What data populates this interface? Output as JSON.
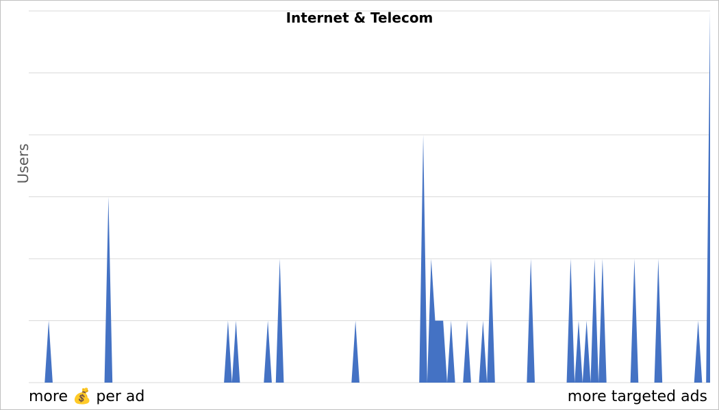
{
  "chart_data": {
    "type": "area",
    "title": "Internet & Telecom",
    "ylabel": "Users",
    "x_left_label": "more 💰 per ad",
    "x_right_label": "more targeted ads",
    "ylim": [
      0,
      6
    ],
    "grid": true,
    "series": [
      {
        "color": "#4472c4",
        "values": [
          0,
          0,
          0,
          0,
          0,
          1,
          0,
          0,
          0,
          0,
          0,
          0,
          0,
          0,
          0,
          0,
          0,
          0,
          0,
          0,
          3,
          0,
          0,
          0,
          0,
          0,
          0,
          0,
          0,
          0,
          0,
          0,
          0,
          0,
          0,
          0,
          0,
          0,
          0,
          0,
          0,
          0,
          0,
          0,
          0,
          0,
          0,
          0,
          0,
          0,
          1,
          0,
          1,
          0,
          0,
          0,
          0,
          0,
          0,
          0,
          1,
          0,
          0,
          2,
          0,
          0,
          0,
          0,
          0,
          0,
          0,
          0,
          0,
          0,
          0,
          0,
          0,
          0,
          0,
          0,
          0,
          0,
          1,
          0,
          0,
          0,
          0,
          0,
          0,
          0,
          0,
          0,
          0,
          0,
          0,
          0,
          0,
          0,
          0,
          4,
          0,
          2,
          1,
          1,
          1,
          0,
          1,
          0,
          0,
          0,
          1,
          0,
          0,
          0,
          1,
          0,
          2,
          0,
          0,
          0,
          0,
          0,
          0,
          0,
          0,
          0,
          2,
          0,
          0,
          0,
          0,
          0,
          0,
          0,
          0,
          0,
          2,
          0,
          1,
          0,
          1,
          0,
          2,
          0,
          2,
          0,
          0,
          0,
          0,
          0,
          0,
          0,
          2,
          0,
          0,
          0,
          0,
          0,
          2,
          0,
          0,
          0,
          0,
          0,
          0,
          0,
          0,
          0,
          1,
          0,
          0,
          6
        ]
      }
    ]
  }
}
